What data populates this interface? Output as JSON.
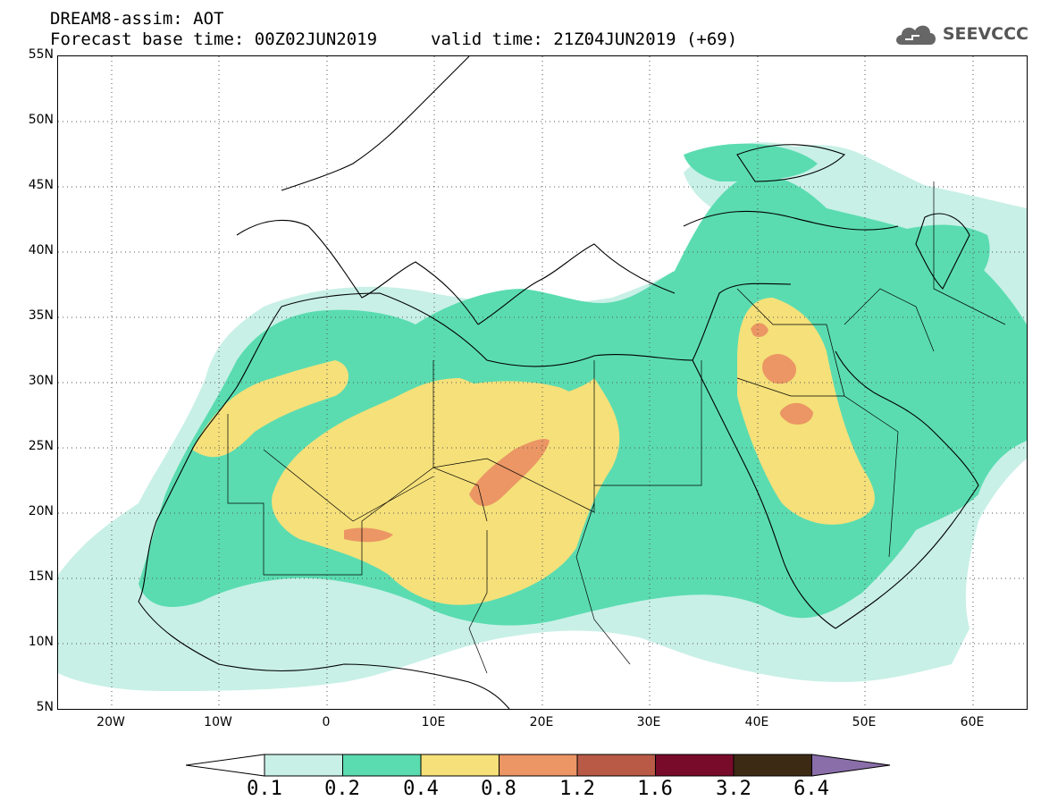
{
  "header": {
    "title": "DREAM8-assim: AOT",
    "base_time": "Forecast base time: 00Z02JUN2019",
    "valid_time": "valid time: 21Z04JUN2019 (+69)",
    "logo_text": "SEEVCCC"
  },
  "map": {
    "lat_labels": [
      "55N",
      "50N",
      "45N",
      "40N",
      "35N",
      "30N",
      "25N",
      "20N",
      "15N",
      "10N",
      "5N"
    ],
    "lon_labels": [
      "20W",
      "10W",
      "0",
      "10E",
      "20E",
      "30E",
      "40E",
      "50E",
      "60E"
    ],
    "lat_range": [
      5,
      55
    ],
    "lon_range": [
      -25,
      65
    ]
  },
  "legend": {
    "labels": [
      "0.1",
      "0.2",
      "0.4",
      "0.8",
      "1.2",
      "1.6",
      "3.2",
      "6.4"
    ],
    "colors": [
      "#ffffff",
      "#c8f0e6",
      "#5adcb0",
      "#f5e07a",
      "#eb9664",
      "#b85a46",
      "#780a2a",
      "#3c2a14",
      "#8a6eaa"
    ]
  }
}
